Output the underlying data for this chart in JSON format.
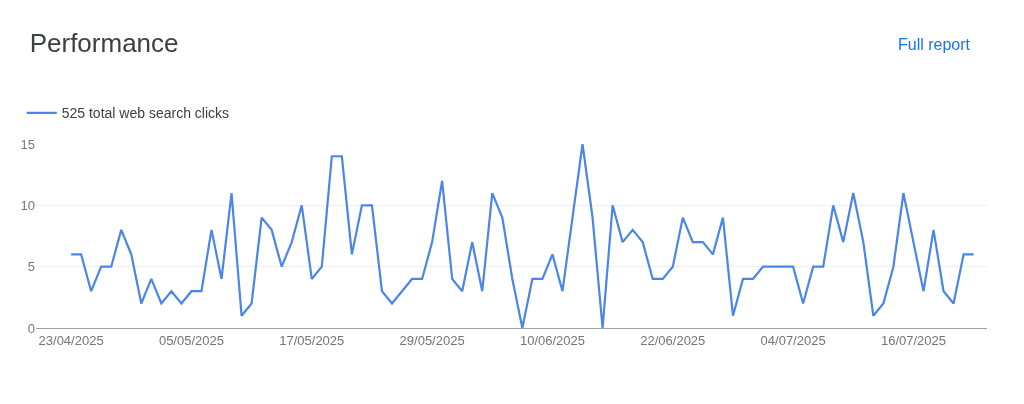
{
  "chart_data": {
    "type": "line",
    "title": "Performance",
    "annotations": [
      "Full report"
    ],
    "legend": "top left",
    "grid": "y",
    "marker": "none",
    "line_style": "solid",
    "x": [
      "2025-04-23",
      "2025-04-24",
      "2025-04-25",
      "2025-04-26",
      "2025-04-27",
      "2025-04-28",
      "2025-04-29",
      "2025-04-30",
      "2025-05-01",
      "2025-05-02",
      "2025-05-03",
      "2025-05-04",
      "2025-05-05",
      "2025-05-06",
      "2025-05-07",
      "2025-05-08",
      "2025-05-09",
      "2025-05-10",
      "2025-05-11",
      "2025-05-12",
      "2025-05-13",
      "2025-05-14",
      "2025-05-15",
      "2025-05-16",
      "2025-05-17",
      "2025-05-18",
      "2025-05-19",
      "2025-05-20",
      "2025-05-21",
      "2025-05-22",
      "2025-05-23",
      "2025-05-24",
      "2025-05-25",
      "2025-05-26",
      "2025-05-27",
      "2025-05-28",
      "2025-05-29",
      "2025-05-30",
      "2025-05-31",
      "2025-06-01",
      "2025-06-02",
      "2025-06-03",
      "2025-06-04",
      "2025-06-05",
      "2025-06-06",
      "2025-06-07",
      "2025-06-08",
      "2025-06-09",
      "2025-06-10",
      "2025-06-11",
      "2025-06-12",
      "2025-06-13",
      "2025-06-14",
      "2025-06-15",
      "2025-06-16",
      "2025-06-17",
      "2025-06-18",
      "2025-06-19",
      "2025-06-20",
      "2025-06-21",
      "2025-06-22",
      "2025-06-23",
      "2025-06-24",
      "2025-06-25",
      "2025-06-26",
      "2025-06-27",
      "2025-06-28",
      "2025-06-29",
      "2025-06-30",
      "2025-07-01",
      "2025-07-02",
      "2025-07-03",
      "2025-07-04",
      "2025-07-05",
      "2025-07-06",
      "2025-07-07",
      "2025-07-08",
      "2025-07-09",
      "2025-07-10",
      "2025-07-11",
      "2025-07-12",
      "2025-07-13",
      "2025-07-14",
      "2025-07-15",
      "2025-07-16",
      "2025-07-17",
      "2025-07-18",
      "2025-07-19",
      "2025-07-20",
      "2025-07-21",
      "2025-07-22"
    ],
    "xlim": [
      "2025-04-19T12:00",
      "2025-07-23T08:00"
    ],
    "xticks": [
      {
        "value": "2025-04-23",
        "label": "23/04/2025"
      },
      {
        "value": "2025-05-05",
        "label": "05/05/2025"
      },
      {
        "value": "2025-05-17",
        "label": "17/05/2025"
      },
      {
        "value": "2025-05-29",
        "label": "29/05/2025"
      },
      {
        "value": "2025-06-10",
        "label": "10/06/2025"
      },
      {
        "value": "2025-06-22",
        "label": "22/06/2025"
      },
      {
        "value": "2025-07-04",
        "label": "04/07/2025"
      },
      {
        "value": "2025-07-16",
        "label": "16/07/2025"
      }
    ],
    "ylim": [
      0,
      15
    ],
    "yticks": [
      0,
      5,
      10,
      15
    ],
    "series": [
      {
        "name": "525 total web search clicks",
        "color": "#4a86e8",
        "values": [
          6,
          6,
          3,
          5,
          5,
          8,
          6,
          2,
          4,
          2,
          3,
          2,
          3,
          3,
          8,
          4,
          11,
          1,
          2,
          9,
          8,
          5,
          7,
          10,
          4,
          5,
          14,
          14,
          6,
          10,
          10,
          3,
          2,
          3,
          4,
          4,
          7,
          12,
          4,
          3,
          7,
          3,
          11,
          9,
          4,
          0,
          4,
          4,
          6,
          3,
          9,
          15,
          9,
          0,
          10,
          7,
          8,
          7,
          4,
          4,
          5,
          9,
          7,
          7,
          6,
          9,
          1,
          4,
          4,
          5,
          5,
          5,
          5,
          2,
          5,
          5,
          10,
          7,
          11,
          7,
          1,
          2,
          5,
          11,
          7,
          3,
          8,
          3,
          2,
          6,
          6
        ]
      }
    ]
  }
}
